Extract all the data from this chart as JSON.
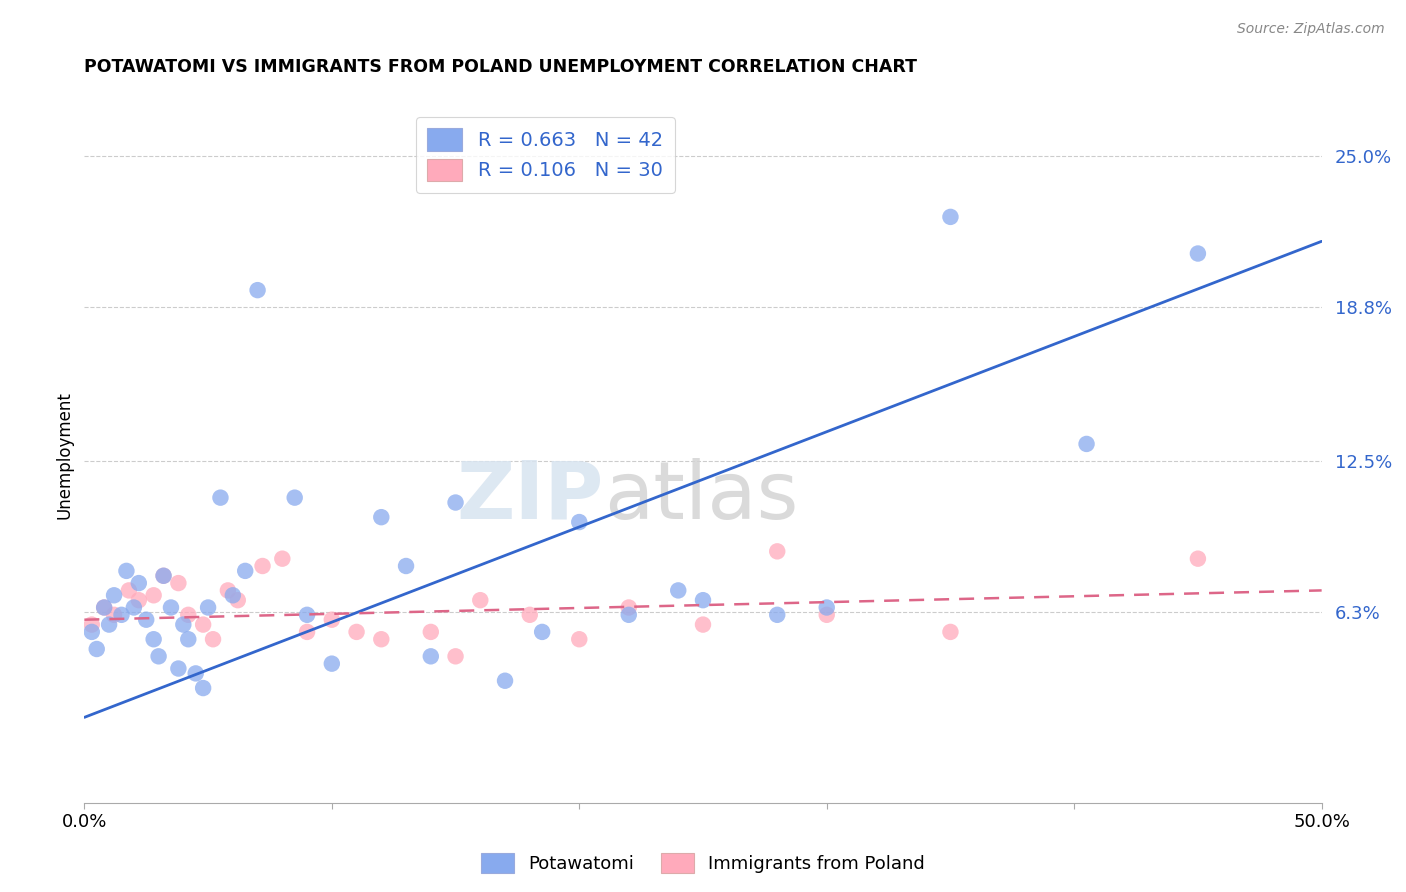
{
  "title": "POTAWATOMI VS IMMIGRANTS FROM POLAND UNEMPLOYMENT CORRELATION CHART",
  "source": "Source: ZipAtlas.com",
  "ylabel": "Unemployment",
  "ytick_values": [
    6.3,
    12.5,
    18.8,
    25.0
  ],
  "xlim": [
    0.0,
    50.0
  ],
  "ylim": [
    -1.5,
    27.0
  ],
  "blue_color": "#88aaee",
  "pink_color": "#ffaabb",
  "blue_line_color": "#3366cc",
  "pink_line_color": "#dd6688",
  "watermark_top": "ZIP",
  "watermark_bot": "atlas",
  "blue_R": 0.663,
  "blue_N": 42,
  "pink_R": 0.106,
  "pink_N": 30,
  "blue_points_x": [
    0.3,
    0.5,
    0.8,
    1.0,
    1.2,
    1.5,
    1.7,
    2.0,
    2.2,
    2.5,
    2.8,
    3.0,
    3.2,
    3.5,
    3.8,
    4.0,
    4.2,
    4.5,
    4.8,
    5.0,
    5.5,
    6.0,
    6.5,
    7.0,
    8.5,
    9.0,
    10.0,
    12.0,
    13.0,
    14.0,
    15.0,
    17.0,
    18.5,
    20.0,
    22.0,
    24.0,
    25.0,
    28.0,
    30.0,
    35.0,
    40.5,
    45.0
  ],
  "blue_points_y": [
    5.5,
    4.8,
    6.5,
    5.8,
    7.0,
    6.2,
    8.0,
    6.5,
    7.5,
    6.0,
    5.2,
    4.5,
    7.8,
    6.5,
    4.0,
    5.8,
    5.2,
    3.8,
    3.2,
    6.5,
    11.0,
    7.0,
    8.0,
    19.5,
    11.0,
    6.2,
    4.2,
    10.2,
    8.2,
    4.5,
    10.8,
    3.5,
    5.5,
    10.0,
    6.2,
    7.2,
    6.8,
    6.2,
    6.5,
    22.5,
    13.2,
    21.0
  ],
  "pink_points_x": [
    0.3,
    0.8,
    1.2,
    1.8,
    2.2,
    2.8,
    3.2,
    3.8,
    4.2,
    4.8,
    5.2,
    5.8,
    6.2,
    7.2,
    8.0,
    9.0,
    10.0,
    11.0,
    12.0,
    14.0,
    15.0,
    16.0,
    18.0,
    20.0,
    22.0,
    25.0,
    28.0,
    30.0,
    35.0,
    45.0
  ],
  "pink_points_y": [
    5.8,
    6.5,
    6.2,
    7.2,
    6.8,
    7.0,
    7.8,
    7.5,
    6.2,
    5.8,
    5.2,
    7.2,
    6.8,
    8.2,
    8.5,
    5.5,
    6.0,
    5.5,
    5.2,
    5.5,
    4.5,
    6.8,
    6.2,
    5.2,
    6.5,
    5.8,
    8.8,
    6.2,
    5.5,
    8.5
  ],
  "blue_line_x0": 0.0,
  "blue_line_y0": 2.0,
  "blue_line_x1": 50.0,
  "blue_line_y1": 21.5,
  "pink_line_x0": 0.0,
  "pink_line_y0": 6.0,
  "pink_line_x1": 50.0,
  "pink_line_y1": 7.2
}
